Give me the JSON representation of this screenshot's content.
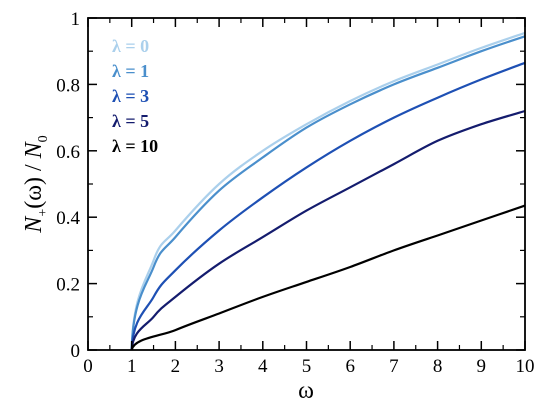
{
  "chart_data": {
    "type": "line",
    "title": "",
    "xlabel": "ω",
    "ylabel": "N+(ω) / N0",
    "ylabel_parts": {
      "N": "N",
      "plus": "+",
      "omega": "(ω)",
      "slash": " / ",
      "N0": "N",
      "zero": "0"
    },
    "xlim": [
      0,
      10
    ],
    "ylim": [
      0,
      1
    ],
    "x_ticks": [
      "0",
      "1",
      "2",
      "3",
      "4",
      "5",
      "6",
      "7",
      "8",
      "9",
      "10"
    ],
    "y_ticks": [
      "0",
      "0.2",
      "0.4",
      "0.6",
      "0.8",
      "1"
    ],
    "grid": false,
    "legend_position": "top-left",
    "series": [
      {
        "name": "λ = 0",
        "color": "#abd0ec",
        "x": [
          1,
          1.5,
          2,
          3,
          4,
          5,
          6,
          7,
          8,
          9,
          10
        ],
        "y": [
          0,
          0.27,
          0.36,
          0.5,
          0.6,
          0.68,
          0.75,
          0.81,
          0.86,
          0.91,
          0.955
        ]
      },
      {
        "name": "λ = 1",
        "color": "#4a8fcc",
        "x": [
          1,
          1.5,
          2,
          3,
          4,
          5,
          6,
          7,
          8,
          9,
          10
        ],
        "y": [
          0,
          0.25,
          0.34,
          0.48,
          0.58,
          0.67,
          0.74,
          0.8,
          0.85,
          0.9,
          0.945
        ]
      },
      {
        "name": "λ = 3",
        "color": "#1e50b4",
        "x": [
          1,
          1.5,
          2,
          3,
          4,
          5,
          6,
          7,
          8,
          9,
          10
        ],
        "y": [
          0,
          0.16,
          0.24,
          0.36,
          0.46,
          0.55,
          0.63,
          0.7,
          0.76,
          0.815,
          0.865
        ]
      },
      {
        "name": "λ = 5",
        "color": "#141c6e",
        "x": [
          1,
          1.5,
          2,
          3,
          4,
          5,
          6,
          7,
          8,
          9,
          10
        ],
        "y": [
          0,
          0.1,
          0.16,
          0.26,
          0.34,
          0.42,
          0.49,
          0.56,
          0.63,
          0.68,
          0.72
        ]
      },
      {
        "name": "λ = 10",
        "color": "#000000",
        "x": [
          1,
          2,
          3,
          4,
          5,
          6,
          7,
          8,
          9,
          10
        ],
        "y": [
          0,
          0.06,
          0.11,
          0.16,
          0.205,
          0.25,
          0.3,
          0.345,
          0.39,
          0.435
        ]
      }
    ]
  }
}
